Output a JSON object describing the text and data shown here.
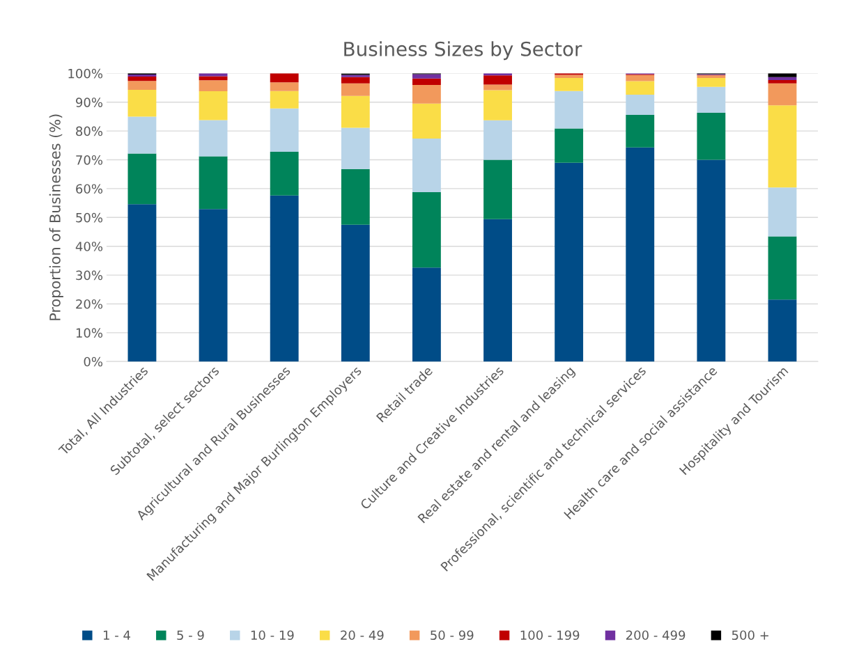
{
  "chart_data": {
    "type": "bar",
    "title": "Business Sizes by Sector",
    "ylabel": "Proportion of Businesses (%)",
    "categories": [
      "Total, All Industries",
      "Subtotal, select sectors",
      "Agricultural and Rural Businesses",
      "Manufacturing and Major Burlington Employers",
      "Retail trade",
      "Culture and Creative Industries",
      "Real estate and rental and leasing",
      "Professional, scientific and technical services",
      "Health care and social assistance",
      "Hospitality and Tourism"
    ],
    "stacked": true,
    "series": [
      {
        "name": "1 - 4",
        "color": "#004c87",
        "values": [
          54.6,
          52.9,
          57.6,
          47.5,
          32.6,
          49.4,
          69.0,
          74.3,
          70.0,
          21.5
        ]
      },
      {
        "name": "5 - 9",
        "color": "#00845a",
        "values": [
          17.6,
          18.3,
          15.2,
          19.3,
          26.2,
          20.6,
          11.9,
          11.3,
          16.3,
          21.9
        ]
      },
      {
        "name": "10 - 19",
        "color": "#b8d4e8",
        "values": [
          12.8,
          12.6,
          15.0,
          14.3,
          18.6,
          13.7,
          13.0,
          7.0,
          9.0,
          17.0
        ]
      },
      {
        "name": "20 - 49",
        "color": "#fadd47",
        "values": [
          9.3,
          10.0,
          6.1,
          11.1,
          12.1,
          10.5,
          4.5,
          4.7,
          3.1,
          28.5
        ]
      },
      {
        "name": "50 - 99",
        "color": "#f2995c",
        "values": [
          3.1,
          3.8,
          3.0,
          4.3,
          6.5,
          1.9,
          1.1,
          2.1,
          0.9,
          7.6
        ]
      },
      {
        "name": "100 - 199",
        "color": "#c00000",
        "values": [
          1.5,
          1.4,
          3.1,
          2.2,
          2.2,
          3.2,
          0.5,
          0.3,
          0.2,
          1.2
        ]
      },
      {
        "name": "200 - 499",
        "color": "#7030a0",
        "values": [
          0.7,
          1.0,
          null,
          0.8,
          1.5,
          0.7,
          null,
          0.3,
          0.2,
          1.0
        ]
      },
      {
        "name": "500 +",
        "color": "#000000",
        "values": [
          0.4,
          null,
          null,
          0.4,
          0.3,
          null,
          null,
          null,
          0.3,
          1.3
        ]
      }
    ],
    "ylim": [
      0,
      100
    ],
    "yticks": [
      {
        "value": 0,
        "label": "0%"
      },
      {
        "value": 10,
        "label": "10%"
      },
      {
        "value": 20,
        "label": "20%"
      },
      {
        "value": 30,
        "label": "30%"
      },
      {
        "value": 40,
        "label": "40%"
      },
      {
        "value": 50,
        "label": "50%"
      },
      {
        "value": 60,
        "label": "60%"
      },
      {
        "value": 70,
        "label": "70%"
      },
      {
        "value": 80,
        "label": "80%"
      },
      {
        "value": 90,
        "label": "90%"
      },
      {
        "value": 100,
        "label": "100%"
      }
    ],
    "grid": "y",
    "legend": "bottom"
  }
}
